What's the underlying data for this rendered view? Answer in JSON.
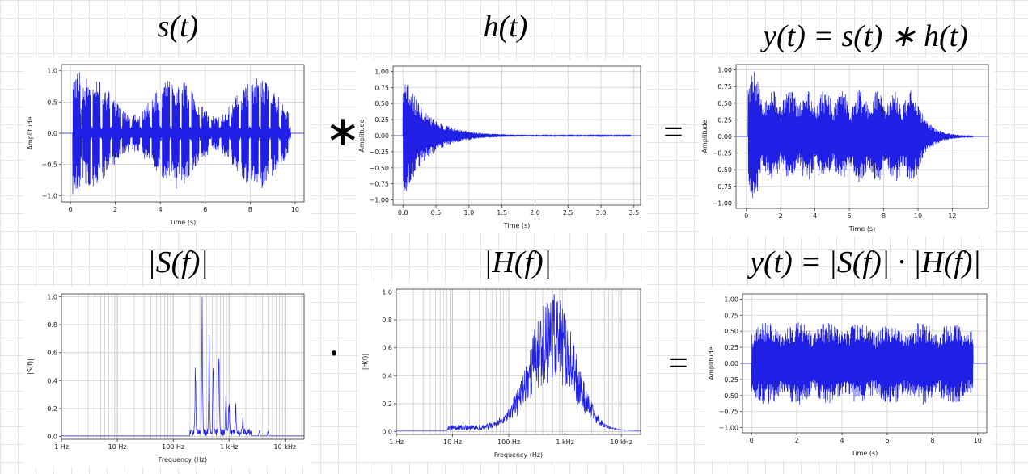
{
  "titles": {
    "s_t": "s(t)",
    "h_t": "h(t)",
    "y_t": "y(t) = s(t) ∗ h(t)",
    "S_f": "|S(f)|",
    "H_f": "|H(f)|",
    "y_f": "y(t) = |S(f)| · |H(f)|"
  },
  "operators": {
    "convolve": "∗",
    "equals_top": "=",
    "multiply": "·",
    "equals_bottom": "="
  },
  "colors": {
    "signal": "#1f1fe6",
    "grid": "#cfcfcf",
    "axis": "#333333"
  },
  "chart_data": [
    {
      "id": "s_time",
      "type": "line",
      "xlabel": "Time (s)",
      "ylabel": "Amplitude",
      "xlim": [
        -0.4,
        10.4
      ],
      "ylim": [
        -1.1,
        1.1
      ],
      "xticks": [
        0,
        2,
        4,
        6,
        8,
        10
      ],
      "xticklabels": [
        "0",
        "2",
        "4",
        "6",
        "8",
        "10"
      ],
      "yticks": [
        -1,
        -0.5,
        0,
        0.5,
        1
      ],
      "yticklabels": [
        "−1.0",
        "−0.5",
        "0.0",
        "0.5",
        "1.0"
      ],
      "signal": {
        "kind": "bursts",
        "start": 0.1,
        "end": 9.8,
        "bursts": 22,
        "peak": 1.0
      }
    },
    {
      "id": "h_time",
      "type": "line",
      "xlabel": "Time (s)",
      "ylabel": "Amplitude",
      "xlim": [
        -0.15,
        3.6
      ],
      "ylim": [
        -1.08,
        1.08
      ],
      "xticks": [
        0,
        0.5,
        1,
        1.5,
        2,
        2.5,
        3,
        3.5
      ],
      "xticklabels": [
        "0.0",
        "0.5",
        "1.0",
        "1.5",
        "2.0",
        "2.5",
        "3.0",
        "3.5"
      ],
      "yticks": [
        -1,
        -0.75,
        -0.5,
        -0.25,
        0,
        0.25,
        0.5,
        0.75,
        1
      ],
      "yticklabels": [
        "−1.00",
        "−0.75",
        "−0.50",
        "−0.25",
        "0.00",
        "0.25",
        "0.50",
        "0.75",
        "1.00"
      ],
      "signal": {
        "kind": "decay",
        "start": 0.0,
        "end": 3.45,
        "peak": 1.0,
        "tau": 0.35
      }
    },
    {
      "id": "y_time",
      "type": "line",
      "xlabel": "Time (s)",
      "ylabel": "Amplitude",
      "xlim": [
        -0.6,
        14.1
      ],
      "ylim": [
        -1.08,
        1.08
      ],
      "xticks": [
        0,
        2,
        4,
        6,
        8,
        10,
        12
      ],
      "xticklabels": [
        "0",
        "2",
        "4",
        "6",
        "8",
        "10",
        "12"
      ],
      "yticks": [
        -1,
        -0.75,
        -0.5,
        -0.25,
        0,
        0.25,
        0.5,
        0.75,
        1
      ],
      "yticklabels": [
        "−1.00",
        "−0.75",
        "−0.50",
        "−0.25",
        "0.00",
        "0.25",
        "0.50",
        "0.75",
        "1.00"
      ],
      "signal": {
        "kind": "reverb",
        "start": 0.1,
        "end": 13.2,
        "peak": 0.95
      }
    },
    {
      "id": "S_freq",
      "type": "line",
      "xlabel": "Frequency (Hz)",
      "ylabel": "|S(f)|",
      "xscale": "log",
      "xlim": [
        1,
        22050
      ],
      "ylim": [
        -0.02,
        1.02
      ],
      "xticks": [
        1,
        10,
        100,
        1000,
        10000
      ],
      "xticklabels": [
        "1 Hz",
        "10 Hz",
        "100 Hz",
        "1 kHz",
        "10 kHz"
      ],
      "yticks": [
        0,
        0.2,
        0.4,
        0.6,
        0.8,
        1.0
      ],
      "yticklabels": [
        "0.0",
        "0.2",
        "0.4",
        "0.6",
        "0.8",
        "1.0"
      ],
      "signal": {
        "kind": "spectrum_peaks",
        "peaks": [
          [
            330,
            1.0
          ],
          [
            250,
            0.5
          ],
          [
            440,
            0.75
          ],
          [
            520,
            0.55
          ],
          [
            660,
            0.62
          ],
          [
            880,
            0.35
          ],
          [
            1000,
            0.28
          ],
          [
            1320,
            0.22
          ],
          [
            1760,
            0.12
          ],
          [
            3500,
            0.05
          ],
          [
            5000,
            0.04
          ]
        ]
      }
    },
    {
      "id": "H_freq",
      "type": "line",
      "xlabel": "Frequency (Hz)",
      "ylabel": "|H(f)|",
      "xscale": "log",
      "xlim": [
        1,
        22050
      ],
      "ylim": [
        -0.02,
        1.02
      ],
      "xticks": [
        1,
        10,
        100,
        1000,
        10000
      ],
      "xticklabels": [
        "1 Hz",
        "10 Hz",
        "100 Hz",
        "1 kHz",
        "10 kHz"
      ],
      "yticks": [
        0,
        0.2,
        0.4,
        0.6,
        0.8,
        1.0
      ],
      "yticklabels": [
        "0.0",
        "0.2",
        "0.4",
        "0.6",
        "0.8",
        "1.0"
      ],
      "signal": {
        "kind": "spectrum_band",
        "center": 600,
        "width": 0.55,
        "peak": 1.0
      }
    },
    {
      "id": "y_product",
      "type": "line",
      "xlabel": "Time (s)",
      "ylabel": "Amplitude",
      "xlim": [
        -0.4,
        10.4
      ],
      "ylim": [
        -1.08,
        1.08
      ],
      "xticks": [
        0,
        2,
        4,
        6,
        8,
        10
      ],
      "xticklabels": [
        "0",
        "2",
        "4",
        "6",
        "8",
        "10"
      ],
      "yticks": [
        -1,
        -0.75,
        -0.5,
        -0.25,
        0,
        0.25,
        0.5,
        0.75,
        1
      ],
      "yticklabels": [
        "−1.00",
        "−0.75",
        "−0.50",
        "−0.25",
        "0.00",
        "0.25",
        "0.50",
        "0.75",
        "1.00"
      ],
      "signal": {
        "kind": "noise",
        "start": 0.0,
        "end": 9.8,
        "peak": 0.95
      }
    }
  ]
}
